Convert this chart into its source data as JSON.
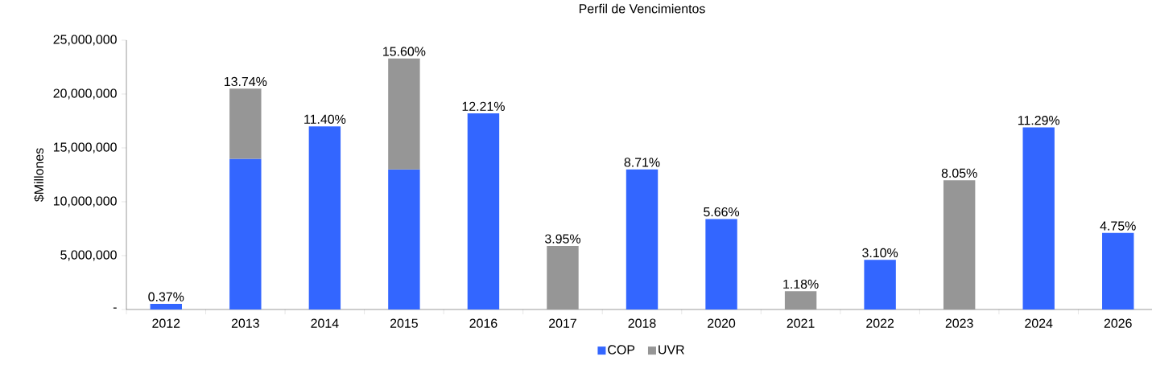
{
  "chart_data": {
    "type": "bar",
    "title": "Perfil de Vencimientos",
    "ylabel": "$Millones",
    "categories": [
      "2012",
      "2013",
      "2014",
      "2015",
      "2016",
      "2017",
      "2018",
      "2020",
      "2021",
      "2022",
      "2023",
      "2024",
      "2026"
    ],
    "stacked": true,
    "series": [
      {
        "name": "COP",
        "color": "#3366ff",
        "values": [
          520000,
          14000000,
          17000000,
          13000000,
          18200000,
          null,
          13000000,
          8400000,
          null,
          4600000,
          null,
          16900000,
          7100000
        ]
      },
      {
        "name": "UVR",
        "color": "#969696",
        "values": [
          null,
          6500000,
          null,
          10300000,
          null,
          5900000,
          null,
          null,
          1700000,
          null,
          12000000,
          null,
          null
        ]
      }
    ],
    "annotations": [
      {
        "text": "0.37%",
        "x": "2012",
        "y": 520000
      },
      {
        "text": "13.74%",
        "x": "2013",
        "y": 20500000
      },
      {
        "text": "11.40%",
        "x": "2014",
        "y": 17000000
      },
      {
        "text": "15.60%",
        "x": "2015",
        "y": 23300000
      },
      {
        "text": "12.21%",
        "x": "2016",
        "y": 18200000
      },
      {
        "text": "3.95%",
        "x": "2017",
        "y": 5900000
      },
      {
        "text": "8.71%",
        "x": "2018",
        "y": 13000000
      },
      {
        "text": "5.66%",
        "x": "2020",
        "y": 8400000
      },
      {
        "text": "1.18%",
        "x": "2021",
        "y": 1700000
      },
      {
        "text": "3.10%",
        "x": "2022",
        "y": 4600000
      },
      {
        "text": "8.05%",
        "x": "2023",
        "y": 12000000
      },
      {
        "text": "11.29%",
        "x": "2024",
        "y": 16900000
      },
      {
        "text": "4.75%",
        "x": "2026",
        "y": 7100000
      }
    ],
    "ylim": [
      0,
      25000000
    ],
    "yticks": [
      {
        "value": 0,
        "label": "-"
      },
      {
        "value": 5000000,
        "label": "5,000,000"
      },
      {
        "value": 10000000,
        "label": "10,000,000"
      },
      {
        "value": 15000000,
        "label": "15,000,000"
      },
      {
        "value": 20000000,
        "label": "20,000,000"
      },
      {
        "value": 25000000,
        "label": "25,000,000"
      }
    ],
    "legend": "bottom"
  }
}
